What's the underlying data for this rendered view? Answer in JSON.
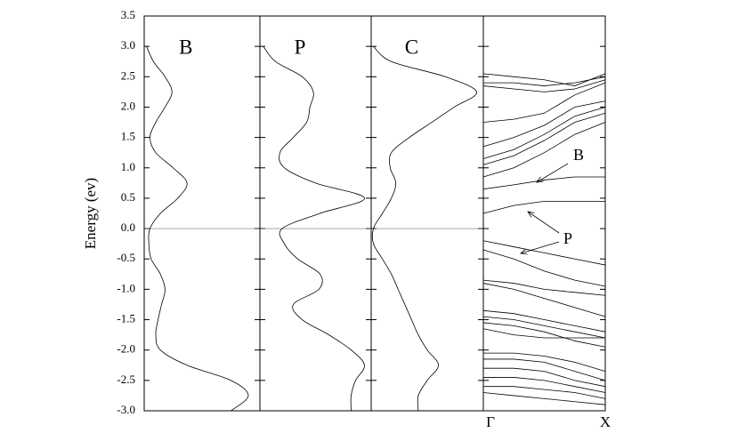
{
  "chart_data": [
    {
      "type": "dos",
      "label": "B",
      "y_label": "Energy (ev)",
      "ylim": [
        -3.0,
        3.5
      ],
      "yticks": [
        {
          "value": -3,
          "label": "-3.0"
        },
        -2.5,
        {
          "value": -2,
          "label": "-2.0"
        },
        -1.5,
        {
          "value": -1,
          "label": "-1.0"
        },
        -0.5,
        {
          "value": 0,
          "label": "0.0"
        },
        0.5,
        {
          "value": 1,
          "label": "1.0"
        },
        1.5,
        {
          "value": 2,
          "label": "2.0"
        },
        2.5,
        {
          "value": 3,
          "label": "3.0"
        },
        3.5
      ],
      "xlim": [
        0,
        1
      ],
      "energy": [
        -3.0,
        -2.75,
        -2.5,
        -2.25,
        -2.0,
        -1.75,
        -1.5,
        -1.25,
        -1.0,
        -0.75,
        -0.5,
        -0.25,
        0.0,
        0.25,
        0.5,
        0.75,
        1.0,
        1.25,
        1.5,
        1.75,
        2.0,
        2.25,
        2.5,
        2.75,
        3.0
      ],
      "values": [
        0.75,
        0.9,
        0.75,
        0.37,
        0.14,
        0.1,
        0.12,
        0.15,
        0.18,
        0.14,
        0.06,
        0.04,
        0.05,
        0.14,
        0.29,
        0.37,
        0.25,
        0.1,
        0.05,
        0.1,
        0.18,
        0.24,
        0.18,
        0.08,
        0.02
      ]
    },
    {
      "type": "dos",
      "label": "P",
      "ylim": [
        -3.0,
        3.5
      ],
      "xlim": [
        0,
        1
      ],
      "energy": [
        -3.0,
        -2.75,
        -2.5,
        -2.25,
        -2.0,
        -1.75,
        -1.5,
        -1.25,
        -1.0,
        -0.75,
        -0.5,
        -0.25,
        0.0,
        0.25,
        0.5,
        0.75,
        1.0,
        1.25,
        1.5,
        1.75,
        2.0,
        2.25,
        2.5,
        2.75,
        3.0
      ],
      "values": [
        0.82,
        0.82,
        0.86,
        0.94,
        0.82,
        0.62,
        0.38,
        0.3,
        0.53,
        0.54,
        0.34,
        0.22,
        0.2,
        0.54,
        0.94,
        0.5,
        0.22,
        0.18,
        0.3,
        0.42,
        0.45,
        0.48,
        0.38,
        0.14,
        0.03
      ]
    },
    {
      "type": "dos",
      "label": "C",
      "ylim": [
        -3.0,
        3.5
      ],
      "xlim": [
        0,
        1
      ],
      "energy": [
        -3.0,
        -2.75,
        -2.5,
        -2.25,
        -2.0,
        -1.75,
        -1.5,
        -1.25,
        -1.0,
        -0.75,
        -0.5,
        -0.25,
        0.0,
        0.25,
        0.5,
        0.75,
        1.0,
        1.25,
        1.5,
        1.75,
        2.0,
        2.25,
        2.5,
        2.75,
        3.0
      ],
      "values": [
        0.42,
        0.42,
        0.5,
        0.6,
        0.5,
        0.42,
        0.36,
        0.3,
        0.24,
        0.18,
        0.1,
        0.02,
        0.02,
        0.1,
        0.18,
        0.22,
        0.17,
        0.18,
        0.34,
        0.54,
        0.74,
        0.94,
        0.66,
        0.18,
        0.02
      ]
    },
    {
      "type": "bands",
      "ylim": [
        -3.0,
        3.5
      ],
      "xlim": [
        0,
        1
      ],
      "xticks": [
        {
          "value": 0,
          "label": "Γ"
        },
        {
          "value": 1,
          "label": "X"
        }
      ],
      "x": [
        0,
        0.25,
        0.5,
        0.75,
        1
      ],
      "annotations": [
        {
          "text": "B"
        },
        {
          "text": "P"
        }
      ],
      "series": [
        {
          "values": [
            2.55,
            2.5,
            2.45,
            2.35,
            2.55
          ]
        },
        {
          "values": [
            2.4,
            2.4,
            2.35,
            2.4,
            2.5
          ]
        },
        {
          "values": [
            2.35,
            2.3,
            2.25,
            2.3,
            2.45
          ]
        },
        {
          "values": [
            1.75,
            1.8,
            1.9,
            2.2,
            2.4
          ]
        },
        {
          "values": [
            1.35,
            1.5,
            1.7,
            2.0,
            2.1
          ]
        },
        {
          "values": [
            1.15,
            1.3,
            1.55,
            1.85,
            2.0
          ]
        },
        {
          "values": [
            1.05,
            1.2,
            1.45,
            1.75,
            1.9
          ]
        },
        {
          "values": [
            0.85,
            1.0,
            1.25,
            1.55,
            1.75
          ]
        },
        {
          "values": [
            0.65,
            0.72,
            0.8,
            0.85,
            0.85
          ]
        },
        {
          "values": [
            0.25,
            0.38,
            0.45,
            0.45,
            0.45
          ]
        },
        {
          "values": [
            -0.2,
            -0.3,
            -0.4,
            -0.5,
            -0.6
          ]
        },
        {
          "values": [
            -0.35,
            -0.5,
            -0.7,
            -0.85,
            -0.95
          ]
        },
        {
          "values": [
            -0.85,
            -0.9,
            -1.0,
            -1.05,
            -1.1
          ]
        },
        {
          "values": [
            -0.9,
            -1.0,
            -1.15,
            -1.3,
            -1.45
          ]
        },
        {
          "values": [
            -1.35,
            -1.4,
            -1.5,
            -1.6,
            -1.7
          ]
        },
        {
          "values": [
            -1.45,
            -1.5,
            -1.6,
            -1.7,
            -1.8
          ]
        },
        {
          "values": [
            -1.55,
            -1.6,
            -1.7,
            -1.85,
            -1.95
          ]
        },
        {
          "values": [
            -1.65,
            -1.75,
            -1.8,
            -1.8,
            -1.8
          ]
        },
        {
          "values": [
            -2.05,
            -2.05,
            -2.1,
            -2.2,
            -2.35
          ]
        },
        {
          "values": [
            -2.15,
            -2.15,
            -2.2,
            -2.35,
            -2.5
          ]
        },
        {
          "values": [
            -2.3,
            -2.3,
            -2.35,
            -2.5,
            -2.6
          ]
        },
        {
          "values": [
            -2.45,
            -2.45,
            -2.5,
            -2.6,
            -2.7
          ]
        },
        {
          "values": [
            -2.6,
            -2.6,
            -2.65,
            -2.7,
            -2.8
          ]
        },
        {
          "values": [
            -2.7,
            -2.75,
            -2.8,
            -2.85,
            -2.9
          ]
        }
      ]
    }
  ]
}
